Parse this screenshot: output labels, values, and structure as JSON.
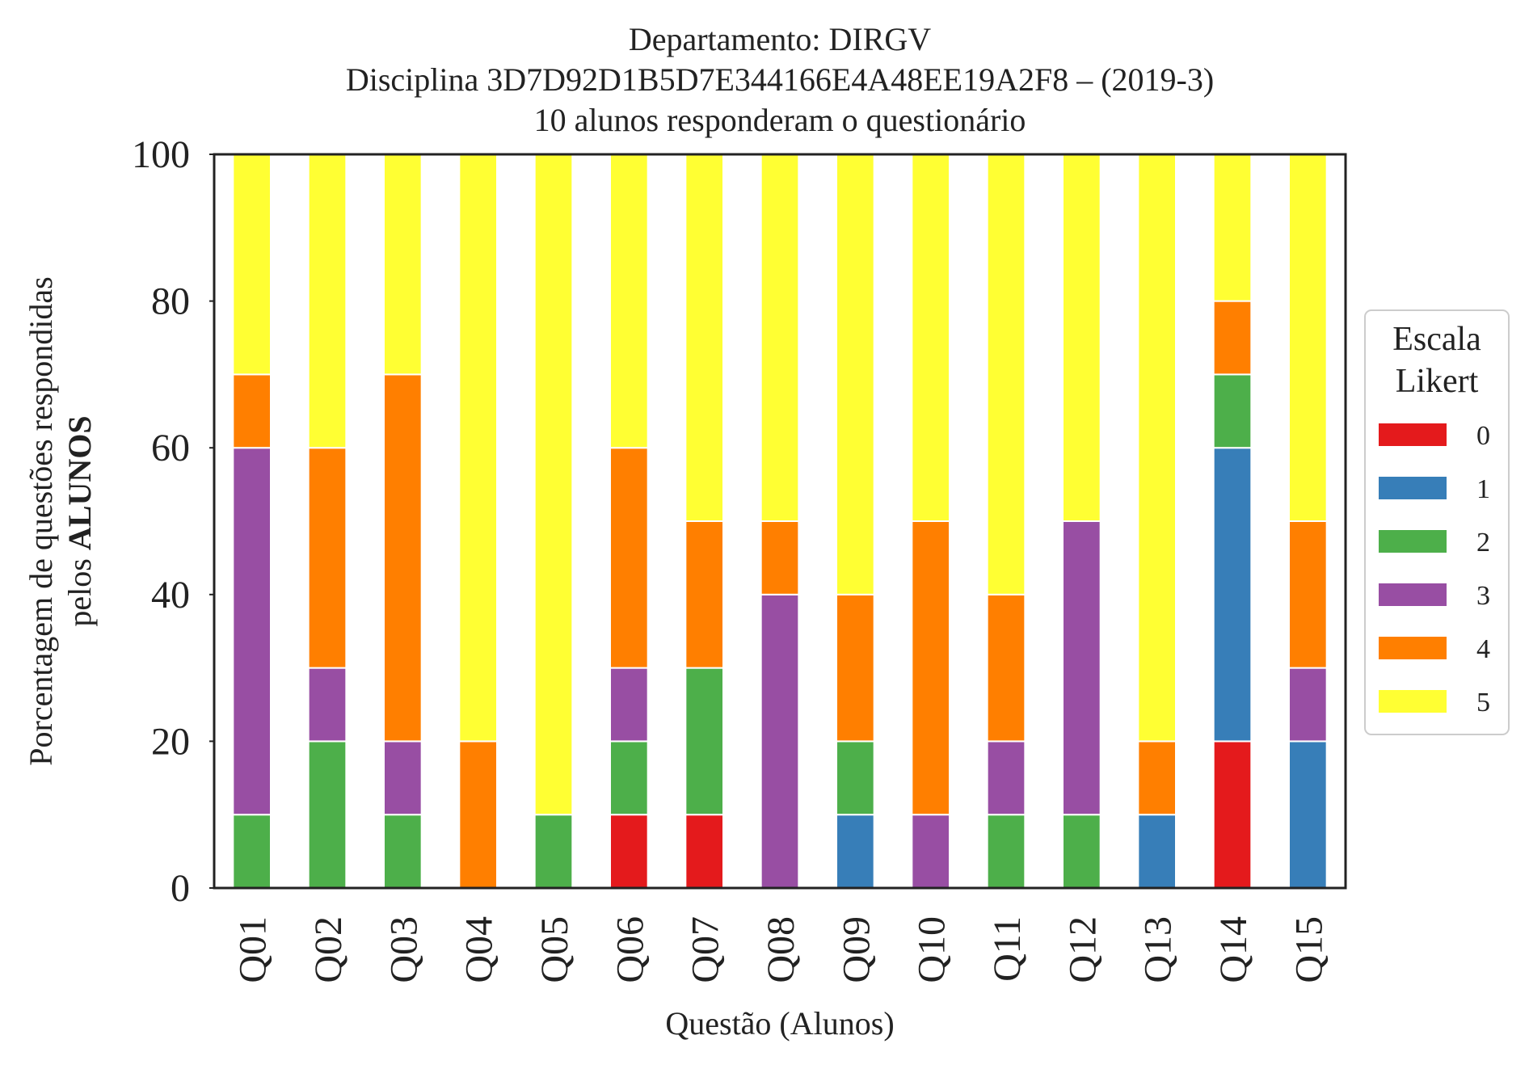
{
  "chart_data": {
    "type": "bar",
    "stacked": true,
    "title_lines": [
      "Departamento: DIRGV",
      "Disciplina 3D7D92D1B5D7E344166E4A48EE19A2F8 – (2019-3)",
      "10 alunos responderam o questionário"
    ],
    "xlabel": "Questão (Alunos)",
    "ylabel_line1": "Porcentagem de questões respondidas",
    "ylabel_line2_prefix": "pelos ",
    "ylabel_line2_bold": "ALUNOS",
    "ylim": [
      0,
      100
    ],
    "yticks": [
      "0",
      "20",
      "40",
      "60",
      "80",
      "100"
    ],
    "grid": false,
    "legend_position": "right",
    "legend_title_lines": [
      "Escala",
      "Likert"
    ],
    "categories": [
      "Q01",
      "Q02",
      "Q03",
      "Q04",
      "Q05",
      "Q06",
      "Q07",
      "Q08",
      "Q09",
      "Q10",
      "Q11",
      "Q12",
      "Q13",
      "Q14",
      "Q15"
    ],
    "series": [
      {
        "name": "0",
        "color": "#e41a1c",
        "values": [
          0,
          0,
          0,
          0,
          0,
          10,
          10,
          0,
          0,
          0,
          0,
          0,
          0,
          20,
          0
        ]
      },
      {
        "name": "1",
        "color": "#377eb8",
        "values": [
          0,
          0,
          0,
          0,
          0,
          0,
          0,
          0,
          10,
          0,
          0,
          0,
          10,
          40,
          20
        ]
      },
      {
        "name": "2",
        "color": "#4daf4a",
        "values": [
          10,
          20,
          10,
          0,
          10,
          10,
          20,
          0,
          10,
          0,
          10,
          10,
          0,
          10,
          0
        ]
      },
      {
        "name": "3",
        "color": "#984ea3",
        "values": [
          50,
          10,
          10,
          0,
          0,
          10,
          0,
          40,
          0,
          10,
          10,
          40,
          0,
          0,
          10
        ]
      },
      {
        "name": "4",
        "color": "#ff7f00",
        "values": [
          10,
          30,
          50,
          20,
          0,
          30,
          20,
          10,
          20,
          40,
          20,
          0,
          10,
          10,
          20
        ]
      },
      {
        "name": "5",
        "color": "#ffff33",
        "values": [
          30,
          40,
          30,
          80,
          90,
          40,
          50,
          50,
          60,
          50,
          60,
          50,
          80,
          20,
          50
        ]
      }
    ]
  }
}
